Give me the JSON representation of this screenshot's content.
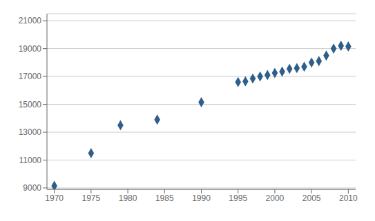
{
  "chart_data": {
    "type": "scatter",
    "x": [
      1970,
      1975,
      1979,
      1984,
      1990,
      1995,
      1996,
      1997,
      1998,
      1999,
      2000,
      2001,
      2002,
      2003,
      2004,
      2005,
      2006,
      2007,
      2008,
      2009,
      2010
    ],
    "values": [
      9150,
      11500,
      13500,
      13900,
      15150,
      16600,
      16650,
      16850,
      17000,
      17100,
      17250,
      17350,
      17550,
      17600,
      17700,
      18000,
      18100,
      18500,
      19000,
      19200,
      19150
    ],
    "color": "#2E5F8A",
    "marker": "diamond",
    "xlim": [
      1969,
      2011
    ],
    "xticks": [
      1970,
      1975,
      1980,
      1985,
      1990,
      1995,
      2000,
      2005,
      2010
    ],
    "ylim": [
      8900,
      21500
    ],
    "yticks": [
      9000,
      11000,
      13000,
      15000,
      17000,
      19000,
      21000
    ],
    "grid": "y"
  }
}
